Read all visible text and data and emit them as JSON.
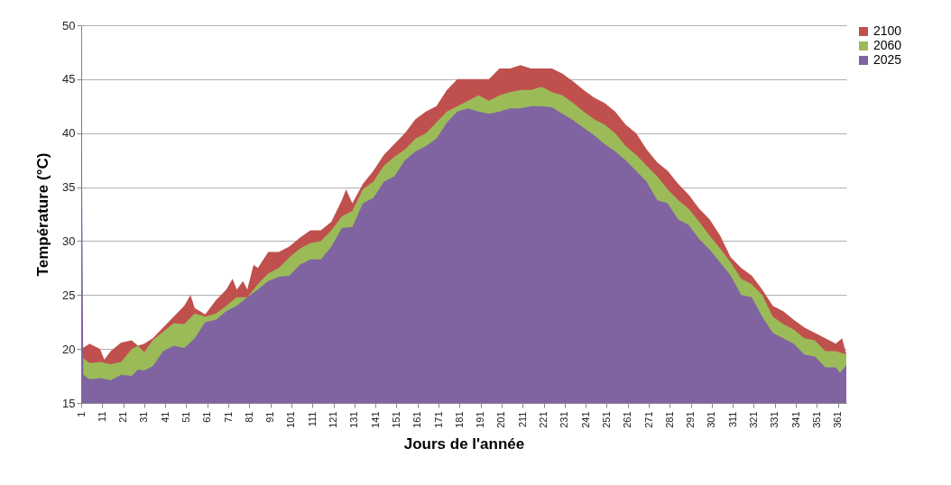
{
  "chart_data": {
    "type": "area",
    "xlabel": "Jours de l'année",
    "ylabel": "Température (°C)",
    "xlim": [
      1,
      365
    ],
    "xticks": [
      1,
      11,
      21,
      31,
      41,
      51,
      61,
      71,
      81,
      91,
      101,
      111,
      121,
      131,
      141,
      151,
      161,
      171,
      181,
      191,
      201,
      211,
      221,
      231,
      241,
      251,
      261,
      271,
      281,
      291,
      301,
      311,
      321,
      331,
      341,
      351,
      361
    ],
    "ylim": [
      15,
      50
    ],
    "yticks": [
      15,
      20,
      25,
      30,
      35,
      40,
      45,
      50
    ],
    "grid": "y",
    "legend": "right",
    "series": [
      {
        "name": "2100",
        "color": "#c0504d",
        "x": [
          1,
          5,
          10,
          12,
          15,
          20,
          25,
          28,
          31,
          35,
          40,
          45,
          50,
          53,
          55,
          60,
          65,
          70,
          73,
          75,
          78,
          80,
          83,
          85,
          90,
          95,
          100,
          105,
          110,
          115,
          120,
          125,
          127,
          130,
          135,
          140,
          145,
          150,
          155,
          160,
          165,
          170,
          175,
          180,
          185,
          190,
          195,
          200,
          205,
          210,
          215,
          220,
          225,
          230,
          235,
          240,
          245,
          250,
          255,
          260,
          265,
          270,
          275,
          280,
          285,
          290,
          295,
          300,
          305,
          310,
          315,
          320,
          325,
          330,
          335,
          340,
          345,
          350,
          355,
          360,
          363,
          365
        ],
        "values": [
          20.0,
          20.5,
          20.0,
          19.0,
          19.8,
          20.6,
          20.8,
          20.3,
          20.5,
          21.0,
          22.0,
          23.0,
          24.0,
          25.0,
          23.8,
          23.2,
          24.5,
          25.5,
          26.5,
          25.5,
          26.3,
          25.5,
          27.8,
          27.5,
          29.0,
          29.0,
          29.5,
          30.3,
          31.0,
          31.0,
          31.8,
          33.8,
          34.8,
          33.5,
          35.3,
          36.5,
          38.0,
          39.0,
          40.0,
          41.3,
          42.0,
          42.5,
          44.0,
          45.0,
          45.0,
          45.0,
          45.0,
          46.0,
          46.0,
          46.3,
          46.0,
          46.0,
          46.0,
          45.5,
          44.8,
          44.0,
          43.3,
          42.8,
          42.0,
          40.8,
          40.0,
          38.5,
          37.3,
          36.5,
          35.3,
          34.3,
          33.0,
          32.0,
          30.5,
          28.5,
          27.5,
          26.8,
          25.5,
          24.0,
          23.5,
          22.7,
          22.0,
          21.5,
          21.0,
          20.5,
          21.0,
          19.5
        ]
      },
      {
        "name": "2060",
        "color": "#9bbb59",
        "x": [
          1,
          5,
          10,
          15,
          20,
          25,
          28,
          31,
          35,
          40,
          45,
          50,
          55,
          60,
          65,
          70,
          75,
          80,
          85,
          90,
          95,
          100,
          105,
          110,
          115,
          120,
          125,
          130,
          135,
          140,
          145,
          150,
          155,
          160,
          165,
          170,
          175,
          180,
          185,
          190,
          195,
          200,
          205,
          210,
          215,
          220,
          225,
          230,
          235,
          240,
          245,
          250,
          255,
          260,
          265,
          270,
          275,
          280,
          285,
          290,
          295,
          300,
          305,
          310,
          315,
          320,
          325,
          330,
          335,
          340,
          345,
          350,
          355,
          360,
          365
        ],
        "values": [
          19.3,
          18.7,
          18.8,
          18.6,
          18.8,
          20.0,
          20.3,
          19.7,
          20.8,
          21.6,
          22.4,
          22.3,
          23.3,
          23.0,
          23.3,
          24.0,
          24.8,
          24.8,
          26.0,
          27.0,
          27.5,
          28.5,
          29.3,
          29.8,
          30.0,
          31.0,
          32.3,
          32.8,
          34.8,
          35.5,
          37.0,
          37.8,
          38.5,
          39.5,
          40.0,
          41.0,
          42.0,
          42.5,
          43.0,
          43.5,
          43.0,
          43.5,
          43.8,
          44.0,
          44.0,
          44.3,
          43.8,
          43.5,
          42.8,
          42.0,
          41.3,
          40.8,
          40.0,
          38.8,
          38.0,
          37.0,
          36.0,
          34.8,
          33.8,
          33.0,
          31.8,
          30.5,
          29.3,
          28.0,
          26.5,
          26.0,
          25.0,
          23.0,
          22.3,
          21.8,
          21.0,
          20.8,
          19.8,
          19.8,
          19.5
        ]
      },
      {
        "name": "2025",
        "color": "#8064a2",
        "x": [
          1,
          2,
          5,
          10,
          15,
          20,
          25,
          28,
          31,
          35,
          40,
          45,
          50,
          55,
          60,
          65,
          70,
          75,
          80,
          85,
          90,
          95,
          100,
          105,
          110,
          115,
          120,
          125,
          130,
          135,
          140,
          145,
          150,
          155,
          160,
          165,
          170,
          175,
          180,
          185,
          190,
          195,
          200,
          205,
          210,
          215,
          220,
          225,
          230,
          235,
          240,
          245,
          250,
          255,
          260,
          265,
          270,
          275,
          280,
          285,
          290,
          295,
          300,
          305,
          310,
          315,
          320,
          325,
          330,
          335,
          340,
          345,
          350,
          355,
          360,
          362,
          365
        ],
        "values": [
          50,
          17.6,
          17.2,
          17.3,
          17.1,
          17.6,
          17.5,
          18.1,
          18.0,
          18.4,
          19.8,
          20.3,
          20.1,
          21.0,
          22.5,
          22.7,
          23.5,
          24.0,
          24.8,
          25.5,
          26.3,
          26.7,
          26.8,
          27.8,
          28.3,
          28.3,
          29.5,
          31.2,
          31.3,
          33.5,
          34.0,
          35.5,
          36.0,
          37.5,
          38.3,
          38.8,
          39.5,
          41.0,
          42.0,
          42.3,
          42.0,
          41.8,
          42.0,
          42.3,
          42.3,
          42.5,
          42.5,
          42.4,
          41.8,
          41.2,
          40.5,
          39.8,
          39.0,
          38.3,
          37.5,
          36.5,
          35.5,
          33.8,
          33.5,
          32.0,
          31.5,
          30.2,
          29.2,
          28.0,
          26.8,
          25.0,
          24.8,
          23.0,
          21.5,
          21.0,
          20.5,
          19.5,
          19.3,
          18.3,
          18.3,
          17.8,
          18.5
        ]
      }
    ]
  }
}
